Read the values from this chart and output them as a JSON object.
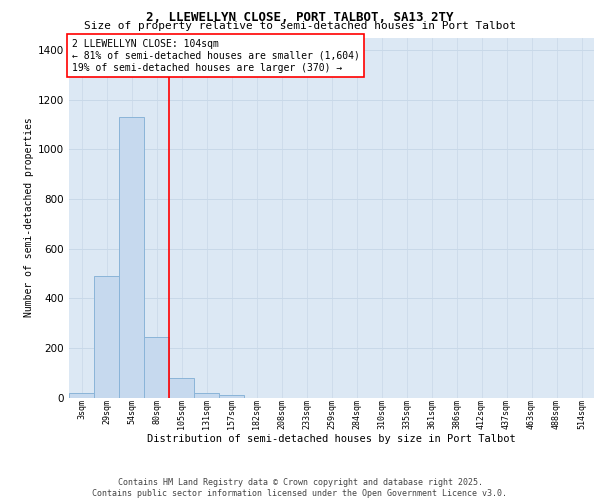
{
  "title1": "2, LLEWELLYN CLOSE, PORT TALBOT, SA13 2TY",
  "title2": "Size of property relative to semi-detached houses in Port Talbot",
  "xlabel": "Distribution of semi-detached houses by size in Port Talbot",
  "ylabel": "Number of semi-detached properties",
  "categories": [
    "3sqm",
    "29sqm",
    "54sqm",
    "80sqm",
    "105sqm",
    "131sqm",
    "157sqm",
    "182sqm",
    "208sqm",
    "233sqm",
    "259sqm",
    "284sqm",
    "310sqm",
    "335sqm",
    "361sqm",
    "386sqm",
    "412sqm",
    "437sqm",
    "463sqm",
    "488sqm",
    "514sqm"
  ],
  "values": [
    18,
    490,
    1130,
    245,
    80,
    20,
    10,
    0,
    0,
    0,
    0,
    0,
    0,
    0,
    0,
    0,
    0,
    0,
    0,
    0,
    0
  ],
  "bar_color": "#c6d9ee",
  "bar_edge_color": "#8ab4d8",
  "vline_x": 3.5,
  "vline_color": "red",
  "annotation_title": "2 LLEWELLYN CLOSE: 104sqm",
  "annotation_line1": "← 81% of semi-detached houses are smaller (1,604)",
  "annotation_line2": "19% of semi-detached houses are larger (370) →",
  "annotation_box_color": "white",
  "annotation_box_edgecolor": "red",
  "ylim": [
    0,
    1450
  ],
  "yticks": [
    0,
    200,
    400,
    600,
    800,
    1000,
    1200,
    1400
  ],
  "grid_color": "#c8d8e8",
  "bg_color": "#dce8f4",
  "footer1": "Contains HM Land Registry data © Crown copyright and database right 2025.",
  "footer2": "Contains public sector information licensed under the Open Government Licence v3.0.",
  "title1_fontsize": 9,
  "title2_fontsize": 8,
  "ylabel_fontsize": 7,
  "xlabel_fontsize": 7.5,
  "tick_fontsize": 6,
  "footer_fontsize": 6,
  "ann_fontsize": 7
}
